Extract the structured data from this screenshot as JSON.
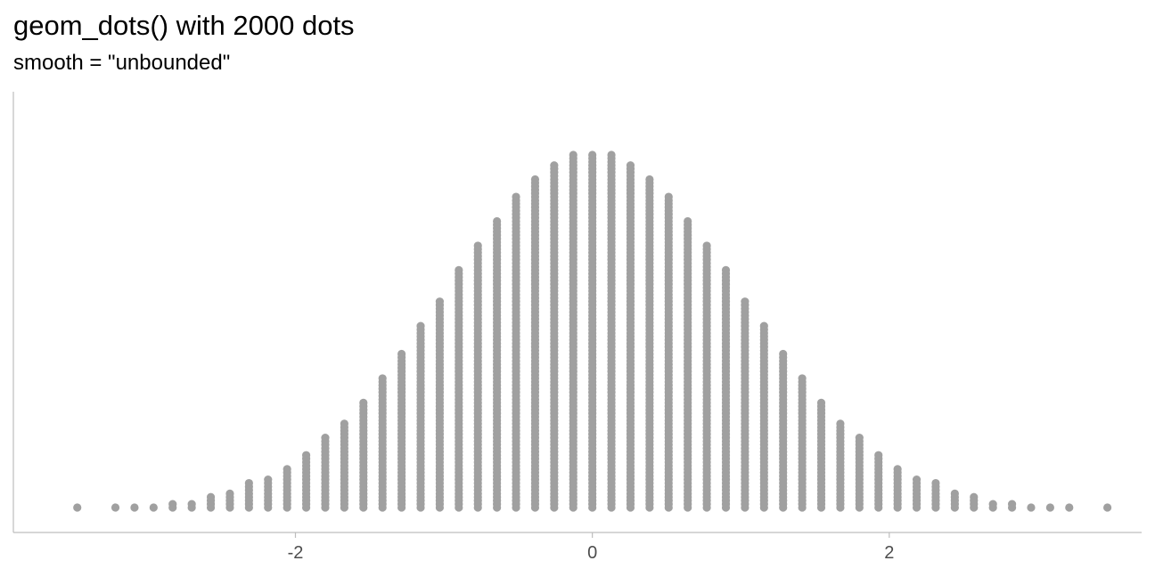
{
  "chart_data": {
    "type": "dotplot",
    "title": "geom_dots() with 2000 dots",
    "subtitle": "smooth = \"unbounded\"",
    "xlabel": "",
    "ylabel": "",
    "n_dots": 2000,
    "xlim": [
      -3.9,
      3.7
    ],
    "x_ticks": [
      -2,
      0,
      2
    ],
    "x_tick_labels": [
      "-2",
      "0",
      "2"
    ],
    "grid": false,
    "dot_color": "#A0A0A0",
    "axis_color": "#BDBDBD",
    "tick_label_color": "#4D4D4D",
    "distribution": "normal",
    "mean": 0,
    "sd": 1
  }
}
